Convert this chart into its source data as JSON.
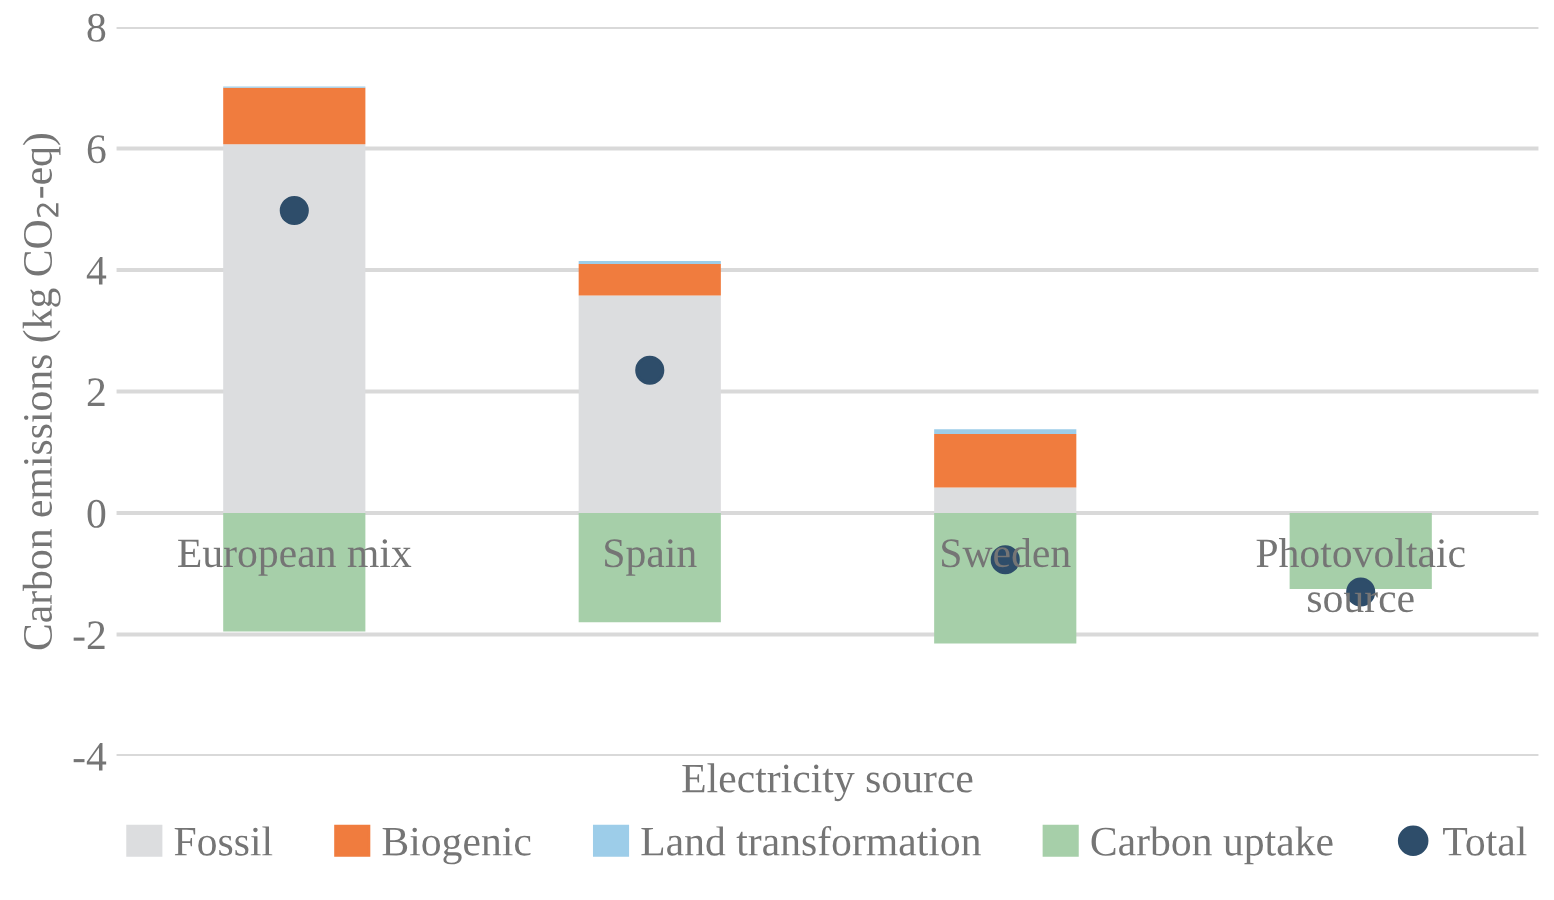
{
  "chart_data": {
    "type": "bar",
    "stacked": true,
    "xlabel": "Electricity source",
    "ylabel": "Carbon emissions (kg CO$_{2}$-eq)",
    "categories": [
      "European mix",
      "Spain",
      "Sweden",
      "Photovoltaic\nsource"
    ],
    "series": [
      {
        "name": "Fossil",
        "color": "#dcdddf",
        "values": [
          6.07,
          3.58,
          0.42,
          0
        ]
      },
      {
        "name": "Biogenic",
        "color": "#f07c3e",
        "values": [
          0.93,
          0.52,
          0.88,
          0
        ]
      },
      {
        "name": "Land transformation",
        "color": "#9dcde9",
        "values": [
          0.02,
          0.05,
          0.08,
          0
        ]
      },
      {
        "name": "Carbon uptake",
        "color": "#a6cfa9",
        "values": [
          -1.95,
          -1.8,
          -2.15,
          -1.25
        ]
      },
      {
        "name": "Total",
        "type": "scatter",
        "color": "#2e4d6a",
        "marker": "circle",
        "values": [
          4.98,
          2.35,
          -0.77,
          -1.3
        ]
      }
    ],
    "ylim": [
      -4,
      8
    ],
    "yticks": [
      {
        "value": -4,
        "label": "-4"
      },
      {
        "value": -2,
        "label": "-2"
      },
      0,
      2,
      4,
      6,
      8
    ],
    "grid": "y",
    "legend": "bottom"
  }
}
